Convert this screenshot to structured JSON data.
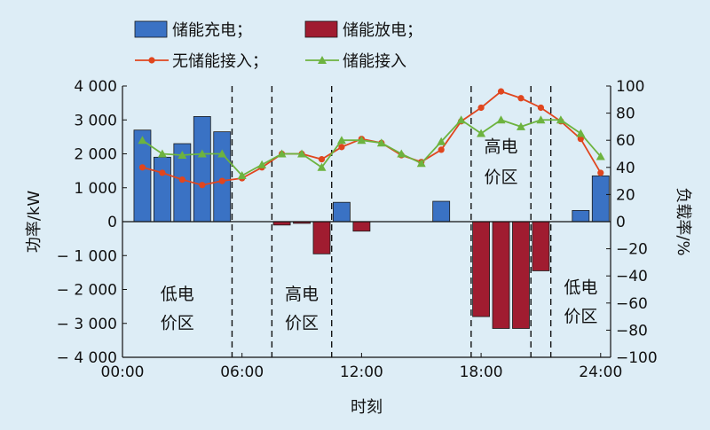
{
  "chart_data": {
    "type": "bar+line",
    "xlabel": "时刻",
    "ylabel_left": "功率/kW",
    "ylabel_right": "负载率/%",
    "ylim_left": [
      -4000,
      4000
    ],
    "ylim_right": [
      -100,
      100
    ],
    "xlim": [
      0,
      24.5
    ],
    "x_ticks": [
      0,
      6,
      12,
      18,
      24
    ],
    "x_tick_labels": [
      "00:00",
      "06:00",
      "12:00",
      "18:00",
      "24:00"
    ],
    "y_left_ticks": [
      4000,
      3000,
      2000,
      1000,
      0,
      -1000,
      -2000,
      -3000,
      -4000
    ],
    "y_left_tick_labels": [
      "4 000",
      "3 000",
      "2 000",
      "1 000",
      "0",
      "− 1 000",
      "− 2 000",
      "− 3 000",
      "− 4 000"
    ],
    "y_right_ticks": [
      100,
      80,
      60,
      40,
      20,
      0,
      -20,
      -40,
      -60,
      -80,
      -100
    ],
    "y_right_tick_labels": [
      "100",
      "80",
      "60",
      "40",
      "20",
      "0",
      "−20",
      "−40",
      "−60",
      "−80",
      "−100"
    ],
    "legend": {
      "placement": "top",
      "items": [
        {
          "label": "储能充电；",
          "kind": "bar",
          "color": "#3a72c4"
        },
        {
          "label": "储能放电；",
          "kind": "bar",
          "color": "#a01c30"
        },
        {
          "label": "无储能接入；",
          "kind": "line",
          "marker": "circle",
          "color": "#e0461e"
        },
        {
          "label": "储能接入",
          "kind": "line",
          "marker": "triangle",
          "color": "#6db33f"
        }
      ]
    },
    "bars": [
      {
        "series": "charge",
        "x": 1,
        "value": 2700
      },
      {
        "series": "charge",
        "x": 2,
        "value": 1900
      },
      {
        "series": "charge",
        "x": 3,
        "value": 2300
      },
      {
        "series": "charge",
        "x": 4,
        "value": 3100
      },
      {
        "series": "charge",
        "x": 5,
        "value": 2650
      },
      {
        "series": "discharge",
        "x": 8,
        "value": -100
      },
      {
        "series": "discharge",
        "x": 9,
        "value": -50
      },
      {
        "series": "discharge",
        "x": 10,
        "value": -950
      },
      {
        "series": "charge",
        "x": 11,
        "value": 570
      },
      {
        "series": "discharge",
        "x": 12,
        "value": -280
      },
      {
        "series": "charge",
        "x": 16,
        "value": 600
      },
      {
        "series": "discharge",
        "x": 18,
        "value": -2800
      },
      {
        "series": "discharge",
        "x": 19,
        "value": -3150
      },
      {
        "series": "discharge",
        "x": 20,
        "value": -3150
      },
      {
        "series": "discharge",
        "x": 21,
        "value": -1450
      },
      {
        "series": "charge",
        "x": 23,
        "value": 330
      },
      {
        "series": "charge",
        "x": 24,
        "value": 1350
      }
    ],
    "series": [
      {
        "name": "无储能接入",
        "axis": "right",
        "color": "#e0461e",
        "marker": "circle",
        "x": [
          1,
          2,
          3,
          4,
          5,
          6,
          7,
          8,
          9,
          10,
          11,
          12,
          13,
          14,
          15,
          16,
          17,
          18,
          19,
          20,
          21,
          22,
          23,
          24
        ],
        "values": [
          40,
          36,
          31,
          27,
          30,
          32,
          40,
          50,
          50,
          46,
          55,
          61,
          58,
          49,
          44,
          53,
          74,
          84,
          96,
          91,
          84,
          74,
          61,
          36
        ]
      },
      {
        "name": "储能接入",
        "axis": "right",
        "color": "#6db33f",
        "marker": "triangle",
        "x": [
          1,
          2,
          3,
          4,
          5,
          6,
          7,
          8,
          9,
          10,
          11,
          12,
          13,
          14,
          15,
          16,
          17,
          18,
          19,
          20,
          21,
          22,
          23,
          24
        ],
        "values": [
          60,
          50,
          49,
          50,
          50,
          34,
          42,
          50,
          50,
          40,
          60,
          60,
          58,
          50,
          43,
          59,
          75,
          65,
          75,
          70,
          75,
          75,
          65,
          48
        ]
      }
    ],
    "divider_x": [
      5.5,
      7.5,
      10.5,
      17.5,
      20.5,
      21.5
    ],
    "regions": [
      {
        "lines": [
          "低电",
          "价区"
        ],
        "x": 2.75,
        "y_values": [
          -2300,
          -3150
        ]
      },
      {
        "lines": [
          "高电",
          "价区"
        ],
        "x": 9.0,
        "y_values": [
          -2300,
          -3150
        ]
      },
      {
        "lines": [
          "高电",
          "价区"
        ],
        "x": 19.0,
        "y_values": [
          2050,
          1150
        ]
      },
      {
        "lines": [
          "低电",
          "价区"
        ],
        "x": 23.0,
        "y_values": [
          -2100,
          -2950
        ]
      }
    ]
  }
}
